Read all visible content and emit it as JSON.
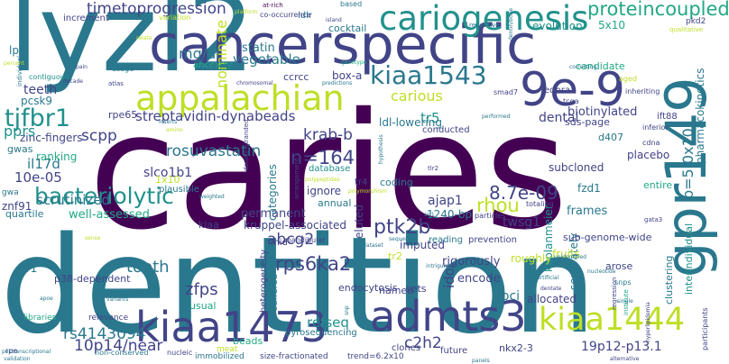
{
  "palette": {
    "dark_purple": "#440154",
    "indigo": "#414487",
    "steel_blue": "#2a788e",
    "teal": "#21918c",
    "green": "#22a884",
    "light_green": "#7ad151",
    "yellow_green": "#bddf26"
  },
  "words": [
    "caries",
    "dentition",
    "lyzl2",
    "cancerspecific",
    "gpr149",
    "9e-9",
    "appalachian",
    "cariogenesis",
    "kiaa1543",
    "kiaa1473",
    "admts3",
    "kiaa1444",
    "bacteriolytic",
    "tjfbr1",
    "proteincoupled",
    "timetoprogression",
    "nominate",
    "p=5.0x10",
    "mg/dl",
    "vegetable",
    "statin",
    "rosuvastatin",
    "streptavidin-dynabeads",
    "krab-b",
    "n=164",
    "8.7e-09",
    "rhou",
    "ptk2b",
    "rps6ka2",
    "abcg2",
    "tooth",
    "zfps",
    "10p14/near",
    "rs4143094",
    "c2h2",
    "refseq",
    "19p12-p13.1",
    "scpp",
    "il17d",
    "10e-05",
    "tr5",
    "carious",
    "dental",
    "biotinylated",
    "ldl-lowering",
    "5x10",
    "evolution",
    "cocktail",
    "candidate",
    "pharmacokinetics",
    "kaplanmeier",
    "fzd1",
    "sds-page",
    "d407",
    "placebo",
    "subcloned",
    "entire",
    "twsg1",
    "frames",
    "ajap1",
    "1240-bp",
    "slco1b1",
    "box-a",
    "ccrcc",
    "teeth",
    "pcsk9",
    "rpe65",
    "lpa",
    "increment",
    "contiguous",
    "ancestry",
    "variation",
    "ranking",
    "gwas",
    "zinc-fingers",
    "pprs",
    "scrutinized",
    "znf91",
    "quartile",
    "well-assessed",
    "kiaa",
    "permanent",
    "kruppel-associated",
    "eluted",
    "annual",
    "ignore",
    "categories",
    "1x10",
    "plausible",
    "coding",
    "database",
    "tr4",
    "tr2",
    "idol",
    "encode",
    "rigorously",
    "imputed",
    "mid",
    "heterogeneity",
    "suffered",
    "endocytosis",
    "named",
    "sets",
    "loci",
    "allocated",
    "separately",
    "fruits",
    "sub-genome-wide",
    "interindividual",
    "clustering",
    "arose",
    "tr1",
    "p38-dependent",
    "relevance",
    "usual",
    "libraries",
    "beads",
    "pyrosequencing",
    "immobilized",
    "size-fractionated",
    "trend=6.2x10",
    "nkx2-3",
    "future",
    "clones",
    "meat",
    "non-conserved",
    "nucleic",
    "rpe",
    "ednra",
    "smad7",
    "tcga",
    "aged",
    "ift88",
    "inferior",
    "snps",
    "roughly",
    "reading",
    "prevention",
    "mandibular",
    "conducted",
    "particles",
    "totaling",
    "gwa",
    "ldlr",
    "repetitive",
    "based",
    "pkd2",
    "qualitative",
    "inheriting",
    "at-rich",
    "co-occurrence",
    "platform",
    "individual",
    "relate",
    "percent",
    "pain",
    "decade",
    "usage",
    "atlas",
    "proposed",
    "genotype",
    "predictions",
    "chromosomal",
    "double-stranded",
    "inserts",
    "amino",
    "island",
    "correcting",
    "performed",
    "cdna",
    "gata3",
    "regression",
    "institute",
    "hyperlipidemia",
    "nucleotide",
    "single",
    "artificial",
    "dentate",
    "participants",
    "alternative",
    "hypothesis",
    "panels",
    "sequence",
    "weighted",
    "epidemiological",
    "validation",
    "postranscriptional",
    "apoe",
    "variants",
    "polymorphism",
    "dentin/bone",
    "unidentified",
    "ssl1",
    "arrangement",
    "tlr2",
    "polypeptides",
    "intriguing",
    "snp",
    "dataset",
    "sense"
  ]
}
